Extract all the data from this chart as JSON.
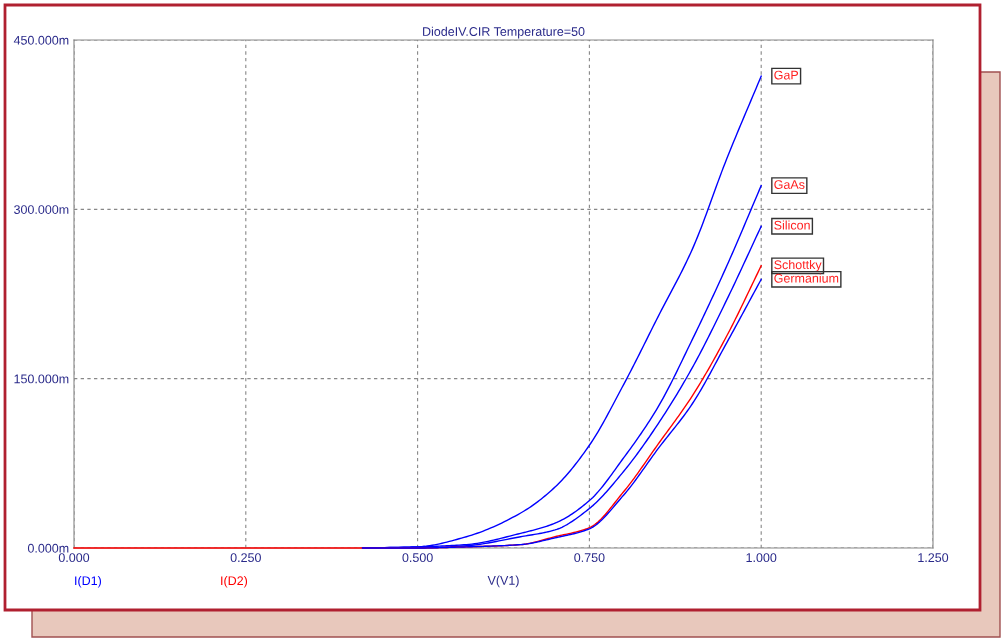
{
  "chart_data": {
    "type": "line",
    "title": "DiodeIV.CIR Temperature=50",
    "xlabel": "V(V1)",
    "annotations": [
      "I(D1)",
      "I(D2)"
    ],
    "xlim": [
      0,
      1.25
    ],
    "xticks": [
      {
        "value": 0,
        "label": "0.000"
      },
      {
        "value": 0.25,
        "label": "0.250"
      },
      {
        "value": 0.5,
        "label": "0.500"
      },
      {
        "value": 0.75,
        "label": "0.750"
      },
      {
        "value": 1.0,
        "label": "1.000"
      },
      {
        "value": 1.25,
        "label": "1.250"
      }
    ],
    "ylim": [
      0,
      450
    ],
    "yticks": [
      {
        "value": 0,
        "label": "0.000m"
      },
      {
        "value": 150,
        "label": "150.000m"
      },
      {
        "value": 300,
        "label": "300.000m"
      },
      {
        "value": 450,
        "label": "450.000m"
      }
    ],
    "grid": true,
    "line_style": "solid",
    "marker": "none",
    "x": [
      0.42,
      0.5,
      0.571,
      0.65,
      0.7,
      0.75,
      0.8,
      0.85,
      0.9,
      0.95,
      1.0
    ],
    "series": [
      {
        "name": "GaP",
        "color": "#0000ff",
        "values": [
          0,
          1,
          10,
          31,
          54,
          91,
          145,
          205,
          265,
          345,
          418
        ]
      },
      {
        "name": "GaAs",
        "color": "#0000ff",
        "values": [
          0,
          1,
          3,
          13,
          22,
          42,
          80,
          125,
          185,
          250,
          321
        ]
      },
      {
        "name": "Silicon",
        "color": "#0000ff",
        "values": [
          0,
          0,
          2,
          10,
          16,
          35,
          68,
          110,
          160,
          220,
          285
        ]
      },
      {
        "name": "Schottky",
        "color": "#ff0000",
        "x": [
          0,
          0.25,
          0.5,
          0.571,
          0.65,
          0.7,
          0.75,
          0.8,
          0.85,
          0.9,
          0.95,
          1.0
        ],
        "values": [
          0,
          0,
          0,
          1,
          3,
          10,
          18,
          50,
          92,
          135,
          188,
          250
        ]
      },
      {
        "name": "Germanium",
        "color": "#0000ff",
        "values": [
          0,
          0,
          1,
          3,
          9,
          17,
          47,
          88,
          128,
          182,
          238
        ]
      }
    ]
  }
}
